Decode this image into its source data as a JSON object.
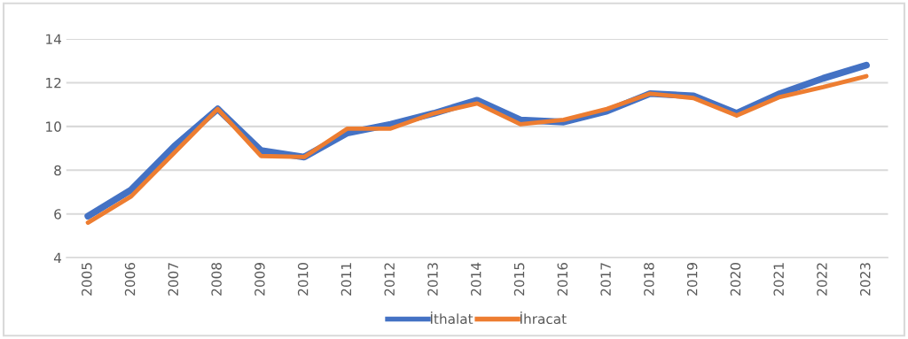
{
  "chart_data": {
    "type": "line",
    "categories": [
      "2005",
      "2006",
      "2007",
      "2008",
      "2009",
      "2010",
      "2011",
      "2012",
      "2013",
      "2014",
      "2015",
      "2016",
      "2017",
      "2018",
      "2019",
      "2020",
      "2021",
      "2022",
      "2023"
    ],
    "series": [
      {
        "name": "İthalat",
        "color": "#4472c4",
        "values": [
          5.9,
          7.1,
          9.1,
          10.8,
          8.9,
          8.6,
          9.7,
          10.1,
          10.6,
          11.2,
          10.3,
          10.2,
          10.7,
          11.5,
          11.4,
          10.6,
          11.5,
          12.2,
          12.8
        ]
      },
      {
        "name": "İhracat",
        "color": "#ed7d31",
        "values": [
          5.6,
          6.8,
          8.8,
          10.8,
          8.65,
          8.6,
          9.9,
          9.9,
          10.6,
          11.05,
          10.1,
          10.3,
          10.8,
          11.5,
          11.3,
          10.5,
          11.35,
          11.8,
          12.3
        ]
      }
    ],
    "ylim": [
      4,
      14
    ],
    "yticks": [
      4,
      6,
      8,
      10,
      12,
      14
    ],
    "grid": "y",
    "legend": "bottom",
    "marker": "none",
    "line_style": "solid"
  }
}
